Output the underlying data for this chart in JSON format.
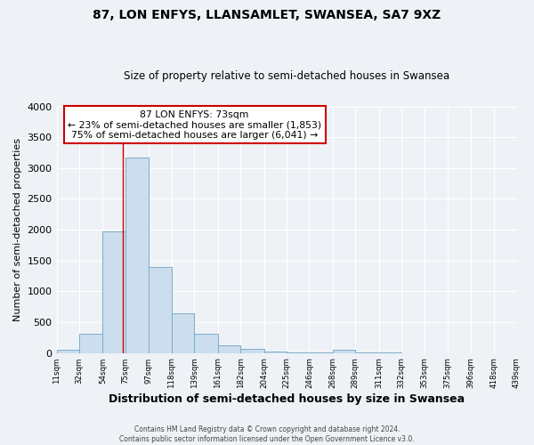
{
  "title": "87, LON ENFYS, LLANSAMLET, SWANSEA, SA7 9XZ",
  "subtitle": "Size of property relative to semi-detached houses in Swansea",
  "xlabel": "Distribution of semi-detached houses by size in Swansea",
  "ylabel": "Number of semi-detached properties",
  "bin_edges": [
    11,
    32,
    54,
    75,
    97,
    118,
    139,
    161,
    182,
    204,
    225,
    246,
    268,
    289,
    311,
    332,
    353,
    375,
    396,
    418,
    439
  ],
  "bin_heights": [
    50,
    320,
    1980,
    3170,
    1400,
    650,
    310,
    130,
    70,
    30,
    10,
    5,
    50,
    10,
    5,
    2,
    2,
    2,
    2,
    2
  ],
  "bar_color": "#ccdded",
  "bar_edge_color": "#7aaec8",
  "property_value": 73,
  "vline_color": "#cc0000",
  "annotation_text_line1": "87 LON ENFYS: 73sqm",
  "annotation_text_line2": "← 23% of semi-detached houses are smaller (1,853)",
  "annotation_text_line3": "75% of semi-detached houses are larger (6,041) →",
  "annotation_box_color": "white",
  "annotation_box_edge": "#cc0000",
  "ylim": [
    0,
    4000
  ],
  "yticks": [
    0,
    500,
    1000,
    1500,
    2000,
    2500,
    3000,
    3500,
    4000
  ],
  "tick_labels": [
    "11sqm",
    "32sqm",
    "54sqm",
    "75sqm",
    "97sqm",
    "118sqm",
    "139sqm",
    "161sqm",
    "182sqm",
    "204sqm",
    "225sqm",
    "246sqm",
    "268sqm",
    "289sqm",
    "311sqm",
    "332sqm",
    "353sqm",
    "375sqm",
    "396sqm",
    "418sqm",
    "439sqm"
  ],
  "footer_line1": "Contains HM Land Registry data © Crown copyright and database right 2024.",
  "footer_line2": "Contains public sector information licensed under the Open Government Licence v3.0.",
  "background_color": "#eef2f7",
  "plot_bg_color": "#eef2f7",
  "grid_color": "white"
}
